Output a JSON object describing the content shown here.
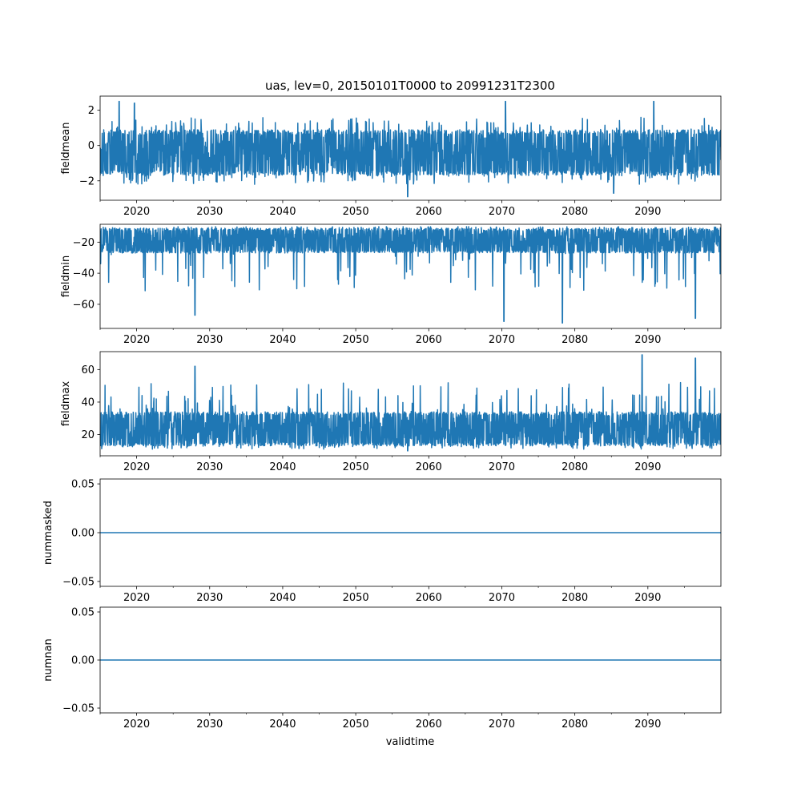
{
  "figure": {
    "title": "uas, lev=0, 20150101T0000 to 20991231T2300",
    "xlabel": "validtime"
  },
  "chart_data": [
    {
      "type": "line",
      "ylabel": "fieldmean",
      "xlim": [
        2015.0,
        2100.0
      ],
      "ylim": [
        -3.1,
        2.8
      ],
      "yticks": [
        -2,
        0,
        2
      ],
      "ytick_labels": [
        "−2",
        "0",
        "2"
      ],
      "xticks": [
        2020,
        2030,
        2040,
        2050,
        2060,
        2070,
        2080,
        2090
      ],
      "xtick_labels": [
        "2020",
        "2030",
        "2040",
        "2050",
        "2060",
        "2070",
        "2080",
        "2090"
      ],
      "series": [
        {
          "color": "#1f77b4",
          "style": "dense-noise",
          "x_range": [
            2015.0,
            2100.0
          ],
          "band_low": -1.7,
          "band_high": 0.9,
          "spike_high_to": 1.6,
          "spike_low_to": -2.2,
          "extremes": [
            [
              2017.6,
              2.5
            ],
            [
              2019.7,
              2.4
            ],
            [
              2057.1,
              -2.9
            ],
            [
              2070.5,
              2.5
            ],
            [
              2085.3,
              -2.7
            ],
            [
              2090.8,
              2.5
            ]
          ]
        }
      ]
    },
    {
      "type": "line",
      "ylabel": "fieldmin",
      "xlim": [
        2015.0,
        2100.0
      ],
      "ylim": [
        -75.5,
        -8.5
      ],
      "yticks": [
        -60,
        -40,
        -20
      ],
      "ytick_labels": [
        "−60",
        "−40",
        "−20"
      ],
      "xticks": [
        2020,
        2030,
        2040,
        2050,
        2060,
        2070,
        2080,
        2090
      ],
      "xtick_labels": [
        "2020",
        "2030",
        "2040",
        "2050",
        "2060",
        "2070",
        "2080",
        "2090"
      ],
      "series": [
        {
          "color": "#1f77b4",
          "style": "dense-noise",
          "x_range": [
            2015.0,
            2100.0
          ],
          "band_low": -27,
          "band_high": -11,
          "spike_high_to": -10,
          "spike_low_to": -52,
          "extremes": [
            [
              2028.0,
              -67
            ],
            [
              2070.3,
              -71
            ],
            [
              2078.3,
              -72
            ],
            [
              2096.5,
              -69
            ]
          ]
        }
      ]
    },
    {
      "type": "line",
      "ylabel": "fieldmax",
      "xlim": [
        2015.0,
        2100.0
      ],
      "ylim": [
        7,
        71
      ],
      "yticks": [
        20,
        40,
        60
      ],
      "ytick_labels": [
        "20",
        "40",
        "60"
      ],
      "xticks": [
        2020,
        2030,
        2040,
        2050,
        2060,
        2070,
        2080,
        2090
      ],
      "xtick_labels": [
        "2020",
        "2030",
        "2040",
        "2050",
        "2060",
        "2070",
        "2080",
        "2090"
      ],
      "series": [
        {
          "color": "#1f77b4",
          "style": "dense-noise",
          "x_range": [
            2015.0,
            2100.0
          ],
          "band_low": 13,
          "band_high": 34,
          "spike_high_to": 52,
          "spike_low_to": 11,
          "extremes": [
            [
              2028.0,
              62
            ],
            [
              2057.1,
              10
            ],
            [
              2089.2,
              69
            ],
            [
              2096.5,
              67
            ]
          ]
        }
      ]
    },
    {
      "type": "line",
      "ylabel": "nummasked",
      "xlim": [
        2015.0,
        2100.0
      ],
      "ylim": [
        -0.055,
        0.055
      ],
      "yticks": [
        -0.05,
        0.0,
        0.05
      ],
      "ytick_labels": [
        "−0.05",
        "0.00",
        "0.05"
      ],
      "xticks": [
        2020,
        2030,
        2040,
        2050,
        2060,
        2070,
        2080,
        2090
      ],
      "xtick_labels": [
        "2020",
        "2030",
        "2040",
        "2050",
        "2060",
        "2070",
        "2080",
        "2090"
      ],
      "series": [
        {
          "color": "#1f77b4",
          "style": "constant",
          "x": [
            2015.0,
            2100.0
          ],
          "y": [
            0.0,
            0.0
          ]
        }
      ]
    },
    {
      "type": "line",
      "ylabel": "numnan",
      "xlim": [
        2015.0,
        2100.0
      ],
      "ylim": [
        -0.055,
        0.055
      ],
      "yticks": [
        -0.05,
        0.0,
        0.05
      ],
      "ytick_labels": [
        "−0.05",
        "0.00",
        "0.05"
      ],
      "xticks": [
        2020,
        2030,
        2040,
        2050,
        2060,
        2070,
        2080,
        2090
      ],
      "xtick_labels": [
        "2020",
        "2030",
        "2040",
        "2050",
        "2060",
        "2070",
        "2080",
        "2090"
      ],
      "series": [
        {
          "color": "#1f77b4",
          "style": "constant",
          "x": [
            2015.0,
            2100.0
          ],
          "y": [
            0.0,
            0.0
          ]
        }
      ]
    }
  ]
}
